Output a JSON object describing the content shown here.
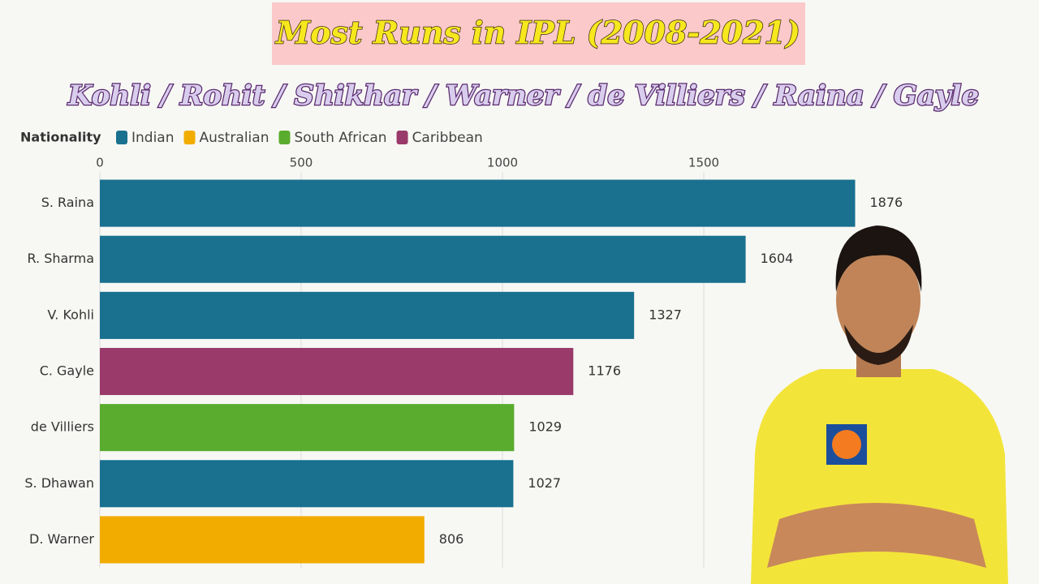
{
  "chart_data": {
    "type": "hbar",
    "title": "Most Runs in IPL (2008-2021)",
    "subtitle": "Kohli / Rohit / Shikhar / Warner / de Villiers / Raina / Gayle",
    "legend_title": "Nationality",
    "categories": [
      "S. Raina",
      "R. Sharma",
      "V. Kohli",
      "C. Gayle",
      "de Villiers",
      "S. Dhawan",
      "D. Warner"
    ],
    "series": [
      {
        "name": "Indian",
        "color": "#19708f",
        "values": [
          1876,
          1604,
          1327,
          null,
          null,
          1027,
          null
        ]
      },
      {
        "name": "Australian",
        "color": "#f2ac00",
        "values": [
          null,
          null,
          null,
          null,
          null,
          null,
          806
        ]
      },
      {
        "name": "South African",
        "color": "#5aac2e",
        "values": [
          null,
          null,
          null,
          null,
          1029,
          null,
          null
        ]
      },
      {
        "name": "Caribbean",
        "color": "#993a6a",
        "values": [
          null,
          null,
          null,
          1176,
          null,
          null,
          null
        ]
      }
    ],
    "xlim": [
      0,
      2000
    ],
    "xticks": [
      0,
      500,
      1000,
      1500
    ],
    "grid": true
  }
}
